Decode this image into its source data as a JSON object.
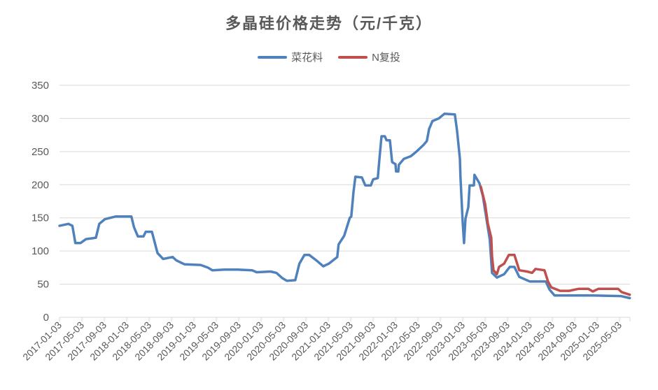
{
  "chart_data": {
    "type": "line",
    "title": "多晶硅价格走势（元/千克）",
    "xlabel": "",
    "ylabel": "",
    "ylim": [
      0,
      350
    ],
    "yticks": [
      0,
      50,
      100,
      150,
      200,
      250,
      300,
      350
    ],
    "xticks": [
      "2017-01-03",
      "2017-05-03",
      "2017-09-03",
      "2018-01-03",
      "2018-05-03",
      "2018-09-03",
      "2019-01-03",
      "2019-05-03",
      "2019-09-03",
      "2020-01-03",
      "2020-05-03",
      "2020-09-03",
      "2021-01-03",
      "2021-05-03",
      "2021-09-03",
      "2022-01-03",
      "2022-05-03",
      "2022-09-03",
      "2023-01-03",
      "2023-05-03",
      "2023-09-03",
      "2024-01-03",
      "2024-05-03",
      "2024-09-03",
      "2025-01-03",
      "2025-05-03"
    ],
    "xlim": [
      "2017-01-03",
      "2025-06-28"
    ],
    "grid": true,
    "legend_position": "top",
    "series": [
      {
        "name": "菜花料",
        "color": "#4f81bd",
        "points": [
          [
            "2017-01-03",
            138
          ],
          [
            "2017-02-21",
            141
          ],
          [
            "2017-03-12",
            138
          ],
          [
            "2017-03-28",
            112
          ],
          [
            "2017-04-25",
            112
          ],
          [
            "2017-05-25",
            118
          ],
          [
            "2017-07-18",
            120
          ],
          [
            "2017-08-06",
            141
          ],
          [
            "2017-09-06",
            148
          ],
          [
            "2017-11-03",
            152
          ],
          [
            "2018-01-28",
            152
          ],
          [
            "2018-02-12",
            136
          ],
          [
            "2018-03-03",
            122
          ],
          [
            "2018-04-03",
            122
          ],
          [
            "2018-04-15",
            129
          ],
          [
            "2018-05-18",
            129
          ],
          [
            "2018-06-18",
            97
          ],
          [
            "2018-07-18",
            88
          ],
          [
            "2018-09-09",
            91
          ],
          [
            "2018-09-28",
            86
          ],
          [
            "2018-11-12",
            80
          ],
          [
            "2019-02-09",
            79
          ],
          [
            "2019-03-18",
            75
          ],
          [
            "2019-04-12",
            71
          ],
          [
            "2019-06-15",
            72
          ],
          [
            "2019-08-28",
            72
          ],
          [
            "2019-11-15",
            71
          ],
          [
            "2019-12-09",
            68
          ],
          [
            "2020-02-24",
            69
          ],
          [
            "2020-03-25",
            67
          ],
          [
            "2020-04-27",
            59
          ],
          [
            "2020-05-21",
            55
          ],
          [
            "2020-07-06",
            56
          ],
          [
            "2020-07-28",
            81
          ],
          [
            "2020-08-25",
            94
          ],
          [
            "2020-09-21",
            94
          ],
          [
            "2020-11-03",
            85
          ],
          [
            "2020-12-06",
            77
          ],
          [
            "2021-01-06",
            81
          ],
          [
            "2021-02-21",
            91
          ],
          [
            "2021-02-28",
            110
          ],
          [
            "2021-03-28",
            123
          ],
          [
            "2021-04-28",
            150
          ],
          [
            "2021-05-06",
            152
          ],
          [
            "2021-05-18",
            189
          ],
          [
            "2021-05-28",
            212
          ],
          [
            "2021-07-03",
            211
          ],
          [
            "2021-07-21",
            199
          ],
          [
            "2021-08-21",
            199
          ],
          [
            "2021-09-03",
            208
          ],
          [
            "2021-09-28",
            210
          ],
          [
            "2021-10-06",
            236
          ],
          [
            "2021-10-18",
            273
          ],
          [
            "2021-11-06",
            273
          ],
          [
            "2021-11-15",
            267
          ],
          [
            "2021-12-03",
            267
          ],
          [
            "2021-12-15",
            234
          ],
          [
            "2022-01-03",
            231
          ],
          [
            "2022-01-06",
            220
          ],
          [
            "2022-01-18",
            220
          ],
          [
            "2022-01-21",
            230
          ],
          [
            "2022-02-18",
            239
          ],
          [
            "2022-03-25",
            243
          ],
          [
            "2022-04-25",
            250
          ],
          [
            "2022-06-03",
            260
          ],
          [
            "2022-06-21",
            266
          ],
          [
            "2022-07-03",
            284
          ],
          [
            "2022-07-21",
            296
          ],
          [
            "2022-08-25",
            300
          ],
          [
            "2022-09-25",
            307
          ],
          [
            "2022-11-21",
            306
          ],
          [
            "2022-12-03",
            281
          ],
          [
            "2022-12-18",
            239
          ],
          [
            "2022-12-21",
            212
          ],
          [
            "2023-01-03",
            143
          ],
          [
            "2023-01-10",
            112
          ],
          [
            "2023-01-18",
            149
          ],
          [
            "2023-02-03",
            166
          ],
          [
            "2023-02-10",
            199
          ],
          [
            "2023-03-03",
            199
          ],
          [
            "2023-03-06",
            215
          ],
          [
            "2023-04-03",
            202
          ],
          [
            "2023-04-21",
            183
          ],
          [
            "2023-05-10",
            149
          ],
          [
            "2023-05-28",
            117
          ],
          [
            "2023-06-10",
            67
          ],
          [
            "2023-07-06",
            60
          ],
          [
            "2023-08-15",
            65
          ],
          [
            "2023-09-15",
            76
          ],
          [
            "2023-10-10",
            76
          ],
          [
            "2023-11-06",
            61
          ],
          [
            "2024-01-03",
            54
          ],
          [
            "2024-03-28",
            54
          ],
          [
            "2024-04-18",
            42
          ],
          [
            "2024-05-15",
            33
          ],
          [
            "2024-11-15",
            33
          ],
          [
            "2024-12-10",
            33
          ],
          [
            "2025-05-10",
            32
          ],
          [
            "2025-06-28",
            29
          ]
        ]
      },
      {
        "name": "N复投",
        "color": "#c0504d",
        "points": [
          [
            "2023-04-10",
            197
          ],
          [
            "2023-05-03",
            171
          ],
          [
            "2023-05-18",
            141
          ],
          [
            "2023-06-06",
            120
          ],
          [
            "2023-06-10",
            92
          ],
          [
            "2023-06-18",
            71
          ],
          [
            "2023-07-06",
            65
          ],
          [
            "2023-07-18",
            76
          ],
          [
            "2023-08-15",
            81
          ],
          [
            "2023-09-10",
            94
          ],
          [
            "2023-10-10",
            94
          ],
          [
            "2023-11-06",
            71
          ],
          [
            "2023-12-18",
            69
          ],
          [
            "2024-01-15",
            67
          ],
          [
            "2024-02-03",
            73
          ],
          [
            "2024-03-21",
            71
          ],
          [
            "2024-04-10",
            54
          ],
          [
            "2024-04-28",
            45
          ],
          [
            "2024-06-15",
            40
          ],
          [
            "2024-08-03",
            40
          ],
          [
            "2024-09-25",
            43
          ],
          [
            "2024-11-15",
            43
          ],
          [
            "2024-12-10",
            39
          ],
          [
            "2025-01-10",
            43
          ],
          [
            "2025-04-25",
            43
          ],
          [
            "2025-05-15",
            38
          ],
          [
            "2025-06-28",
            34
          ]
        ]
      }
    ]
  }
}
